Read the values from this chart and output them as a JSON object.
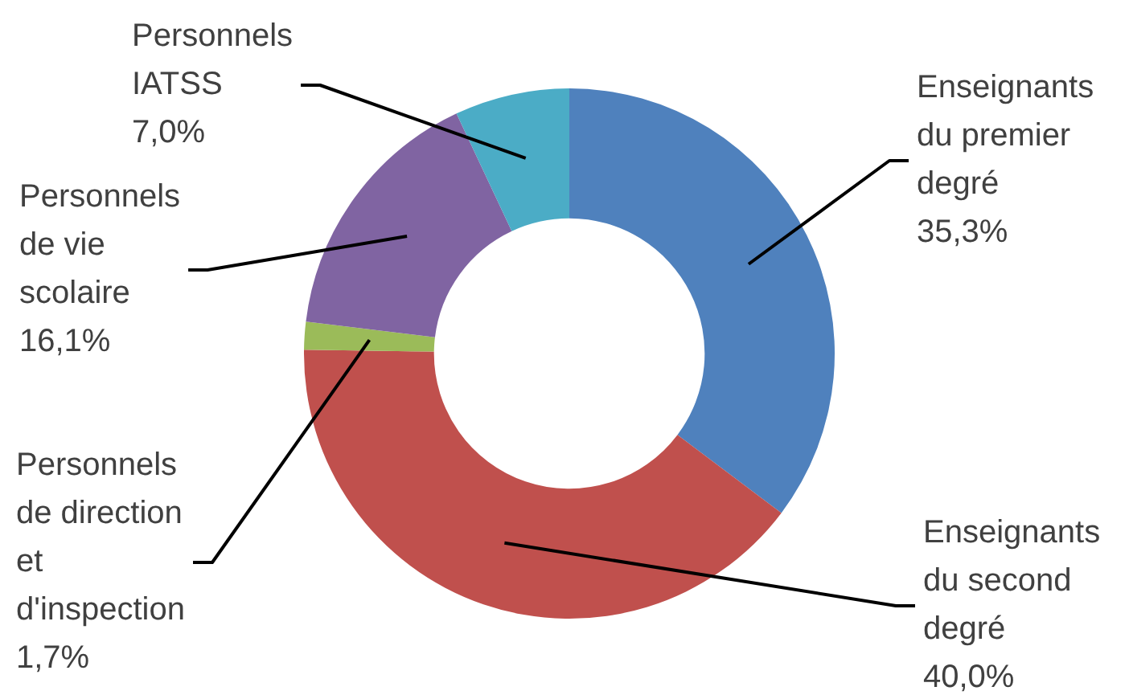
{
  "chart_data": {
    "type": "donut",
    "categories": [
      "Enseignants du premier degré",
      "Enseignants du second degré",
      "Personnels de direction et d'inspection",
      "Personnels de vie scolaire",
      "Personnels IATSS"
    ],
    "values": [
      35.3,
      40.0,
      1.7,
      16.1,
      7.0
    ],
    "colors": [
      "#4f81bd",
      "#c0504d",
      "#9bbb59",
      "#8064a2",
      "#4bacc6"
    ],
    "value_labels": [
      "35,3%",
      "40,0%",
      "1,7%",
      "16,1%",
      "7,0%"
    ]
  }
}
